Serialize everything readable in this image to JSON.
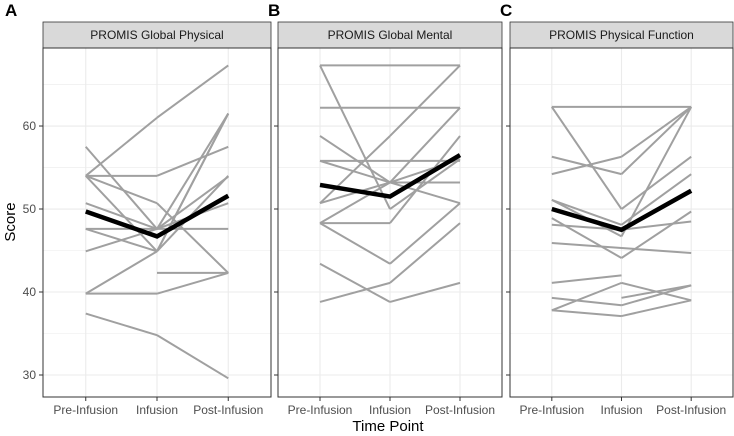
{
  "chart_data": {
    "type": "line",
    "xlabel": "Time Point",
    "ylabel": "Score",
    "categories": [
      "Pre-Infusion",
      "Infusion",
      "Post-Infusion"
    ],
    "ylim": [
      27.35,
      69.4
    ],
    "yticks": [
      30,
      40,
      50,
      60
    ],
    "grid": true,
    "panels": [
      {
        "tag": "A",
        "title": "PROMIS Global Physical",
        "individuals": [
          [
            54,
            61,
            67.3
          ],
          [
            57.5,
            47.6,
            61.5
          ],
          [
            54,
            54,
            57.5
          ],
          [
            54,
            44.9,
            54
          ],
          [
            50.7,
            47.6,
            50.7
          ],
          [
            47.6,
            47.6,
            47.6
          ],
          [
            47.6,
            44.9,
            61.5
          ],
          [
            44.9,
            47.6,
            53.9
          ],
          [
            39.8,
            44.9,
            61.5
          ],
          [
            39.8,
            39.8,
            42.3
          ],
          [
            37.4,
            34.8,
            29.6
          ],
          [
            null,
            42.3,
            42.3
          ],
          [
            54,
            50.7,
            42.3
          ]
        ],
        "mean": [
          49.7,
          46.7,
          51.6
        ]
      },
      {
        "tag": "B",
        "title": "PROMIS Global Mental",
        "individuals": [
          [
            67.3,
            67.3,
            67.3
          ],
          [
            67.3,
            50,
            56
          ],
          [
            62.2,
            62.2,
            62.2
          ],
          [
            58.8,
            53.2,
            50.7
          ],
          [
            55.8,
            55.8,
            55.8
          ],
          [
            50.7,
            58.8,
            67.3
          ],
          [
            50.7,
            53.2,
            62.2
          ],
          [
            48.3,
            48.3,
            58.8
          ],
          [
            48.3,
            53.2,
            56
          ],
          [
            48.3,
            43.4,
            50.7
          ],
          [
            43.4,
            38.8,
            41.1
          ],
          [
            38.8,
            41.1,
            48.3
          ],
          [
            55.8,
            53.2,
            53.2
          ]
        ],
        "mean": [
          52.9,
          51.5,
          56.5
        ]
      },
      {
        "tag": "C",
        "title": "PROMIS Physical Function",
        "individuals": [
          [
            62.3,
            62.3,
            62.3
          ],
          [
            62.3,
            50,
            56.3
          ],
          [
            56.3,
            54.2,
            62.3
          ],
          [
            54.2,
            56.3,
            62.3
          ],
          [
            51.1,
            46.7,
            62.3
          ],
          [
            51.1,
            48.1,
            54.2
          ],
          [
            48.9,
            44.1,
            49.7
          ],
          [
            48.1,
            47.5,
            48.5
          ],
          [
            45.9,
            45.3,
            44.7
          ],
          [
            41.1,
            42,
            null
          ],
          [
            39.3,
            38.4,
            40.8
          ],
          [
            37.8,
            41.1,
            39
          ],
          [
            37.8,
            37.1,
            39
          ],
          [
            null,
            39.3,
            40.8
          ]
        ],
        "mean": [
          50,
          47.5,
          52.2
        ]
      }
    ],
    "colors": {
      "individual": "#a0a0a0",
      "mean": "#000000",
      "strip": "#d9d9d9",
      "grid": "#ebebeb"
    }
  }
}
